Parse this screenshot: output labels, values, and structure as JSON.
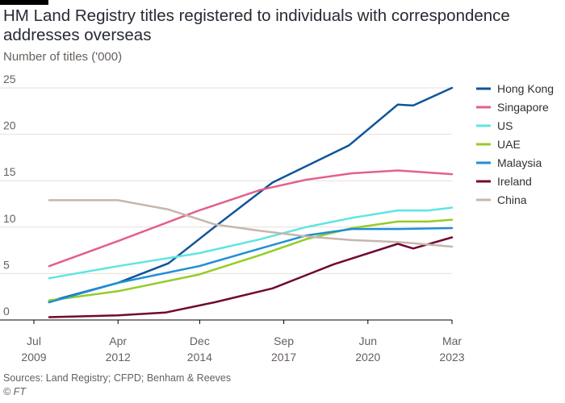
{
  "header": {
    "title": "HM Land Registry titles registered to individuals with correspondence addresses overseas",
    "subtitle": "Number of titles ('000)"
  },
  "footer": {
    "source": "Sources: Land Registry; CFPD; Benham & Reeves",
    "credit": "© FT"
  },
  "colors": {
    "grid": "#e6dfd8",
    "axis": "#000000",
    "tick_text": "#66605c",
    "legend_text": "#33302e"
  },
  "chart_data": {
    "type": "line",
    "title": "HM Land Registry titles registered to individuals with correspondence addresses overseas",
    "ylabel": "Number of titles ('000)",
    "xlabel": "",
    "xlim": [
      2009.5,
      2023.17
    ],
    "ylim": [
      0,
      25
    ],
    "yticks": [
      0,
      5,
      10,
      15,
      20,
      25
    ],
    "grid": true,
    "legend_position": "right",
    "xticks": [
      {
        "x": 2009.5,
        "line1": "Jul",
        "line2": "2009"
      },
      {
        "x": 2012.25,
        "line1": "Apr",
        "line2": "2012"
      },
      {
        "x": 2014.92,
        "line1": "Dec",
        "line2": "2014"
      },
      {
        "x": 2017.67,
        "line1": "Sep",
        "line2": "2017"
      },
      {
        "x": 2020.42,
        "line1": "Jun",
        "line2": "2020"
      },
      {
        "x": 2023.17,
        "line1": "Mar",
        "line2": "2023"
      }
    ],
    "series": [
      {
        "name": "Hong Kong",
        "color": "#0f5499",
        "x": [
          2010.0,
          2012.25,
          2013.9,
          2015.4,
          2017.3,
          2019.8,
          2021.4,
          2021.9,
          2023.17
        ],
        "y": [
          2.0,
          4.0,
          6.1,
          10.0,
          14.8,
          18.8,
          23.2,
          23.1,
          25.0
        ]
      },
      {
        "name": "Singapore",
        "color": "#e3608d",
        "x": [
          2010.0,
          2012.25,
          2014.9,
          2016.9,
          2018.4,
          2019.9,
          2021.4,
          2023.17
        ],
        "y": [
          5.8,
          8.5,
          11.8,
          14.0,
          15.1,
          15.8,
          16.1,
          15.7
        ]
      },
      {
        "name": "US",
        "color": "#5ee5e2",
        "x": [
          2010.0,
          2012.25,
          2014.9,
          2016.9,
          2018.4,
          2019.9,
          2021.4,
          2022.4,
          2023.17
        ],
        "y": [
          4.5,
          5.8,
          7.2,
          8.7,
          10.0,
          11.0,
          11.8,
          11.8,
          12.1
        ]
      },
      {
        "name": "UAE",
        "color": "#96cc28",
        "x": [
          2010.0,
          2012.25,
          2014.9,
          2016.9,
          2018.4,
          2019.9,
          2021.4,
          2022.4,
          2023.17
        ],
        "y": [
          2.1,
          3.1,
          4.9,
          7.0,
          8.7,
          9.9,
          10.6,
          10.6,
          10.8
        ]
      },
      {
        "name": "Malaysia",
        "color": "#1e8fd6",
        "x": [
          2010.0,
          2012.25,
          2014.9,
          2016.9,
          2018.4,
          2019.9,
          2021.4,
          2023.17
        ],
        "y": [
          1.9,
          4.0,
          5.8,
          7.7,
          9.1,
          9.8,
          9.8,
          9.9
        ]
      },
      {
        "name": "Ireland",
        "color": "#700832",
        "x": [
          2010.0,
          2012.25,
          2013.8,
          2015.4,
          2017.3,
          2019.3,
          2021.4,
          2021.9,
          2023.17
        ],
        "y": [
          0.3,
          0.5,
          0.8,
          1.9,
          3.4,
          6.0,
          8.2,
          7.7,
          8.9
        ]
      },
      {
        "name": "China",
        "color": "#c4b7ad",
        "x": [
          2010.0,
          2012.25,
          2013.9,
          2015.4,
          2016.9,
          2018.4,
          2019.9,
          2021.4,
          2023.17
        ],
        "y": [
          12.9,
          12.9,
          11.9,
          10.3,
          9.6,
          9.0,
          8.6,
          8.4,
          7.9
        ]
      }
    ]
  }
}
